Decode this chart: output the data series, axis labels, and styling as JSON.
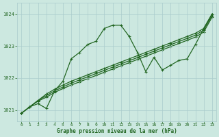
{
  "bg_color": "#cce8e0",
  "grid_color": "#aacccc",
  "line_color": "#226622",
  "title": "Graphe pression niveau de la mer (hPa)",
  "title_color": "#226622",
  "xlim": [
    -0.5,
    23.5
  ],
  "ylim": [
    1020.65,
    1024.35
  ],
  "yticks": [
    1021,
    1022,
    1023,
    1024
  ],
  "xticks": [
    0,
    1,
    2,
    3,
    4,
    5,
    6,
    7,
    8,
    9,
    10,
    11,
    12,
    13,
    14,
    15,
    16,
    17,
    18,
    19,
    20,
    21,
    22,
    23
  ],
  "line_peaked_x": [
    0,
    1,
    2,
    3,
    4,
    5,
    6,
    7,
    8,
    9,
    10,
    11,
    12,
    13,
    14,
    15,
    16,
    17,
    18,
    19,
    20,
    21,
    22,
    23
  ],
  "line_peaked_y": [
    1020.9,
    1021.1,
    1021.2,
    1021.05,
    1021.6,
    1021.9,
    1022.6,
    1022.8,
    1023.05,
    1023.15,
    1023.55,
    1023.65,
    1023.65,
    1023.3,
    1022.8,
    1022.2,
    1022.65,
    1022.25,
    1022.4,
    1022.55,
    1022.6,
    1023.05,
    1023.55,
    1024.0
  ],
  "line_upper_x": [
    0,
    1,
    2,
    3,
    4,
    5,
    6,
    7,
    8,
    9,
    10,
    11,
    12,
    13,
    14,
    15,
    16,
    17,
    18,
    19,
    20,
    21,
    22,
    23
  ],
  "line_upper_y": [
    1020.9,
    1021.1,
    1021.3,
    1021.5,
    1021.65,
    1021.78,
    1021.9,
    1022.0,
    1022.1,
    1022.2,
    1022.3,
    1022.4,
    1022.5,
    1022.6,
    1022.7,
    1022.8,
    1022.9,
    1023.0,
    1023.1,
    1023.2,
    1023.3,
    1023.4,
    1023.55,
    1024.0
  ],
  "line_mid_x": [
    0,
    1,
    2,
    3,
    4,
    5,
    6,
    7,
    8,
    9,
    10,
    11,
    12,
    13,
    14,
    15,
    16,
    17,
    18,
    19,
    20,
    21,
    22,
    23
  ],
  "line_mid_y": [
    1020.9,
    1021.1,
    1021.3,
    1021.45,
    1021.6,
    1021.72,
    1021.84,
    1021.94,
    1022.04,
    1022.14,
    1022.24,
    1022.34,
    1022.44,
    1022.54,
    1022.64,
    1022.74,
    1022.84,
    1022.94,
    1023.04,
    1023.14,
    1023.24,
    1023.34,
    1023.5,
    1023.95
  ],
  "line_lower_x": [
    0,
    1,
    2,
    3,
    4,
    5,
    6,
    7,
    8,
    9,
    10,
    11,
    12,
    13,
    14,
    15,
    16,
    17,
    18,
    19,
    20,
    21,
    22,
    23
  ],
  "line_lower_y": [
    1020.9,
    1021.1,
    1021.28,
    1021.4,
    1021.55,
    1021.67,
    1021.78,
    1021.88,
    1021.98,
    1022.08,
    1022.18,
    1022.28,
    1022.38,
    1022.48,
    1022.58,
    1022.68,
    1022.78,
    1022.88,
    1022.98,
    1023.08,
    1023.18,
    1023.28,
    1023.44,
    1023.9
  ],
  "marker_size": 3.0,
  "line_width": 0.9
}
